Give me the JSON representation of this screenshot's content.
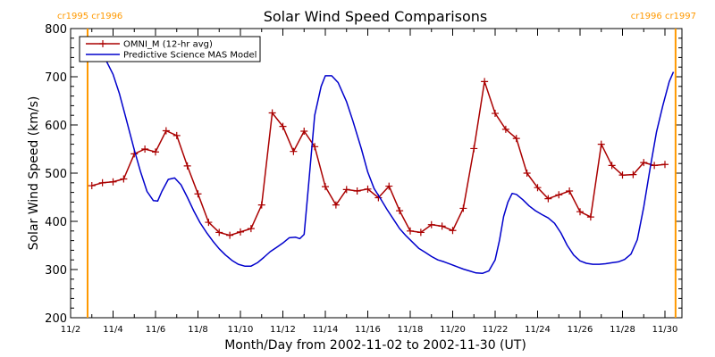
{
  "chart_data": {
    "type": "line",
    "title": "Solar Wind Speed Comparisons",
    "xlabel": "Month/Day from 2002-11-02 to 2002-11-30 (UT)",
    "ylabel": "Solar Wind Speed (km/s)",
    "xlim": [
      0,
      28.8
    ],
    "ylim": [
      200,
      800
    ],
    "xticks": [
      {
        "d": 0,
        "label": "11/2"
      },
      {
        "d": 2,
        "label": "11/4"
      },
      {
        "d": 4,
        "label": "11/6"
      },
      {
        "d": 6,
        "label": "11/8"
      },
      {
        "d": 8,
        "label": "11/10"
      },
      {
        "d": 10,
        "label": "11/12"
      },
      {
        "d": 12,
        "label": "11/14"
      },
      {
        "d": 14,
        "label": "11/16"
      },
      {
        "d": 16,
        "label": "11/18"
      },
      {
        "d": 18,
        "label": "11/20"
      },
      {
        "d": 20,
        "label": "11/22"
      },
      {
        "d": 22,
        "label": "11/24"
      },
      {
        "d": 24,
        "label": "11/26"
      },
      {
        "d": 26,
        "label": "11/28"
      },
      {
        "d": 28,
        "label": "11/30"
      }
    ],
    "yticks": [
      200,
      300,
      400,
      500,
      600,
      700,
      800
    ],
    "grid": false,
    "legend_position": "top-left",
    "rotation_markers": [
      {
        "d": 0.8,
        "label": "cr1995 cr1996"
      },
      {
        "d": 28.5,
        "label": "cr1996 cr1997"
      }
    ],
    "series": [
      {
        "name": "OMNI_M (12-hr avg)",
        "color": "#aa0000",
        "marker": "plus",
        "points": [
          [
            1.0,
            474
          ],
          [
            1.5,
            480
          ],
          [
            2.0,
            482
          ],
          [
            2.5,
            488
          ],
          [
            3.0,
            540
          ],
          [
            3.5,
            550
          ],
          [
            4.0,
            544
          ],
          [
            4.5,
            588
          ],
          [
            5.0,
            578
          ],
          [
            5.5,
            515
          ],
          [
            6.0,
            457
          ],
          [
            6.5,
            398
          ],
          [
            7.0,
            377
          ],
          [
            7.5,
            371
          ],
          [
            8.0,
            378
          ],
          [
            8.5,
            385
          ],
          [
            9.0,
            434
          ],
          [
            9.5,
            625
          ],
          [
            10.0,
            597
          ],
          [
            10.5,
            545
          ],
          [
            11.0,
            587
          ],
          [
            11.5,
            555
          ],
          [
            12.0,
            472
          ],
          [
            12.5,
            434
          ],
          [
            13.0,
            466
          ],
          [
            13.5,
            463
          ],
          [
            14.0,
            467
          ],
          [
            14.5,
            449
          ],
          [
            15.0,
            473
          ],
          [
            15.5,
            422
          ],
          [
            16.0,
            380
          ],
          [
            16.5,
            377
          ],
          [
            17.0,
            393
          ],
          [
            17.5,
            390
          ],
          [
            18.0,
            381
          ],
          [
            18.5,
            427
          ],
          [
            19.0,
            551
          ],
          [
            19.5,
            690
          ],
          [
            20.0,
            624
          ],
          [
            20.5,
            591
          ],
          [
            21.0,
            572
          ],
          [
            21.5,
            500
          ],
          [
            22.0,
            470
          ],
          [
            22.5,
            447
          ],
          [
            23.0,
            455
          ],
          [
            23.5,
            463
          ],
          [
            24.0,
            420
          ],
          [
            24.5,
            409
          ],
          [
            25.0,
            560
          ],
          [
            25.5,
            516
          ],
          [
            26.0,
            496
          ],
          [
            26.5,
            497
          ],
          [
            27.0,
            522
          ],
          [
            27.5,
            516
          ],
          [
            28.0,
            518
          ]
        ]
      },
      {
        "name": "Predictive Science MAS Model",
        "color": "#0000cc",
        "marker": "none",
        "points": [
          [
            0.8,
            735
          ],
          [
            1.0,
            745
          ],
          [
            1.3,
            748
          ],
          [
            1.6,
            740
          ],
          [
            2.0,
            705
          ],
          [
            2.3,
            665
          ],
          [
            2.6,
            615
          ],
          [
            3.0,
            548
          ],
          [
            3.3,
            502
          ],
          [
            3.6,
            462
          ],
          [
            3.9,
            443
          ],
          [
            4.1,
            442
          ],
          [
            4.3,
            462
          ],
          [
            4.6,
            487
          ],
          [
            4.9,
            490
          ],
          [
            5.2,
            476
          ],
          [
            5.5,
            450
          ],
          [
            5.8,
            422
          ],
          [
            6.1,
            397
          ],
          [
            6.4,
            377
          ],
          [
            6.7,
            359
          ],
          [
            7.0,
            343
          ],
          [
            7.3,
            330
          ],
          [
            7.6,
            319
          ],
          [
            7.9,
            311
          ],
          [
            8.2,
            307
          ],
          [
            8.5,
            307
          ],
          [
            8.8,
            314
          ],
          [
            9.1,
            325
          ],
          [
            9.4,
            337
          ],
          [
            9.7,
            346
          ],
          [
            10.0,
            355
          ],
          [
            10.3,
            366
          ],
          [
            10.6,
            367
          ],
          [
            10.8,
            364
          ],
          [
            11.0,
            373
          ],
          [
            11.2,
            470
          ],
          [
            11.5,
            620
          ],
          [
            11.8,
            680
          ],
          [
            12.0,
            702
          ],
          [
            12.3,
            702
          ],
          [
            12.6,
            688
          ],
          [
            13.0,
            648
          ],
          [
            13.3,
            608
          ],
          [
            13.7,
            550
          ],
          [
            14.0,
            502
          ],
          [
            14.3,
            468
          ],
          [
            14.6,
            447
          ],
          [
            14.9,
            425
          ],
          [
            15.2,
            405
          ],
          [
            15.5,
            385
          ],
          [
            15.8,
            370
          ],
          [
            16.1,
            357
          ],
          [
            16.4,
            344
          ],
          [
            16.7,
            336
          ],
          [
            17.0,
            327
          ],
          [
            17.3,
            320
          ],
          [
            17.6,
            316
          ],
          [
            17.9,
            311
          ],
          [
            18.2,
            306
          ],
          [
            18.5,
            301
          ],
          [
            18.8,
            297
          ],
          [
            19.1,
            293
          ],
          [
            19.4,
            292
          ],
          [
            19.7,
            297
          ],
          [
            20.0,
            320
          ],
          [
            20.2,
            360
          ],
          [
            20.4,
            410
          ],
          [
            20.6,
            440
          ],
          [
            20.8,
            458
          ],
          [
            21.0,
            456
          ],
          [
            21.3,
            445
          ],
          [
            21.6,
            432
          ],
          [
            21.9,
            422
          ],
          [
            22.2,
            414
          ],
          [
            22.5,
            407
          ],
          [
            22.8,
            396
          ],
          [
            23.1,
            376
          ],
          [
            23.4,
            350
          ],
          [
            23.7,
            330
          ],
          [
            24.0,
            318
          ],
          [
            24.3,
            313
          ],
          [
            24.6,
            311
          ],
          [
            24.9,
            311
          ],
          [
            25.2,
            312
          ],
          [
            25.5,
            314
          ],
          [
            25.8,
            316
          ],
          [
            26.1,
            321
          ],
          [
            26.4,
            332
          ],
          [
            26.7,
            362
          ],
          [
            27.0,
            430
          ],
          [
            27.3,
            510
          ],
          [
            27.6,
            585
          ],
          [
            27.9,
            640
          ],
          [
            28.2,
            690
          ],
          [
            28.4,
            710
          ]
        ]
      }
    ]
  }
}
